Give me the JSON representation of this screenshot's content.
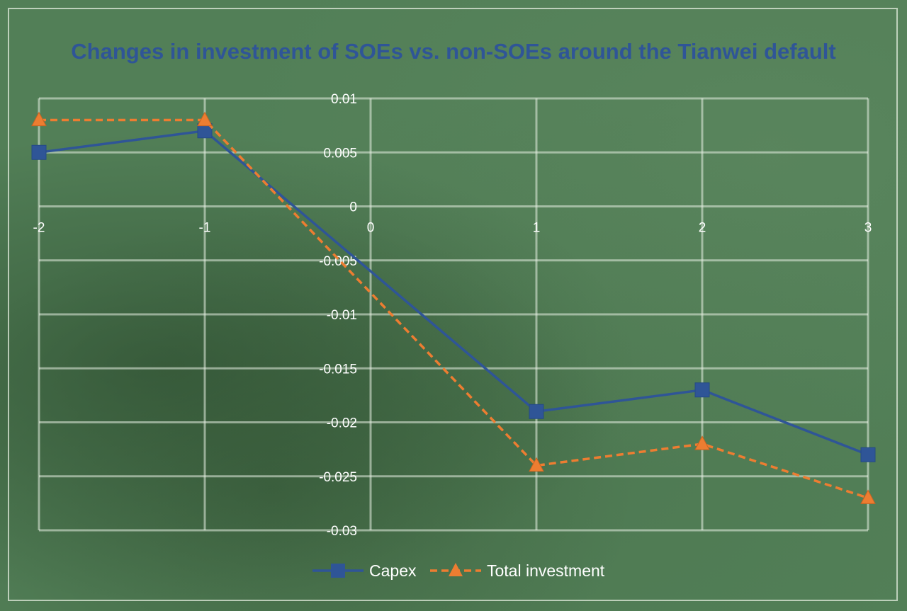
{
  "chart_data": {
    "type": "line",
    "title": "Changes in investment of SOEs vs. non-SOEs around the Tianwei default",
    "xlabel": "",
    "ylabel": "",
    "x": [
      -2,
      -1,
      1,
      2,
      3
    ],
    "x_ticks": [
      "-2",
      "-1",
      "0",
      "1",
      "2",
      "3"
    ],
    "xlim": [
      -2,
      3
    ],
    "y_ticks": [
      "0.01",
      "0.005",
      "0",
      "-0.005",
      "-0.01",
      "-0.015",
      "-0.02",
      "-0.025",
      "-0.03"
    ],
    "ylim": [
      -0.03,
      0.01
    ],
    "grid": true,
    "legend_position": "bottom",
    "series": [
      {
        "name": "Capex",
        "values": [
          0.005,
          0.007,
          -0.019,
          -0.017,
          -0.023
        ],
        "color": "#2f5597",
        "marker": "square",
        "line_style": "solid"
      },
      {
        "name": "Total investment",
        "values": [
          0.008,
          0.008,
          -0.024,
          -0.022,
          -0.027
        ],
        "color": "#ed7d31",
        "marker": "triangle",
        "line_style": "dashed"
      }
    ]
  }
}
